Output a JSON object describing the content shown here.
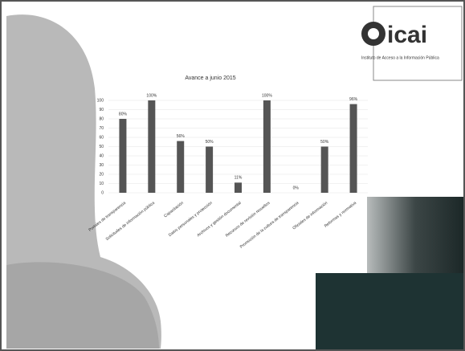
{
  "logo": {
    "name": "icai",
    "subtitle": "Instituto de Acceso a la Información Pública"
  },
  "chart_data": {
    "type": "bar",
    "title": "Avance a junio 2015",
    "categories": [
      "Portales de transparencia",
      "Solicitudes de información pública",
      "Capacitación",
      "Datos personales y protección",
      "Archivos y gestión documental",
      "Recursos de revisión resueltos",
      "Promoción de la cultura de transparencia",
      "Oficiales de información",
      "Reformas y normativa"
    ],
    "values": [
      80,
      100,
      56,
      50,
      11,
      100,
      0,
      50,
      96
    ],
    "value_labels": [
      "80%",
      "100%",
      "56%",
      "50%",
      "11%",
      "100%",
      "0%",
      "50%",
      "96%"
    ],
    "color": "#555555",
    "ylim": [
      0,
      100
    ],
    "yticks": [
      0,
      10,
      20,
      30,
      40,
      50,
      60,
      70,
      80,
      90,
      100
    ],
    "grid": true
  }
}
